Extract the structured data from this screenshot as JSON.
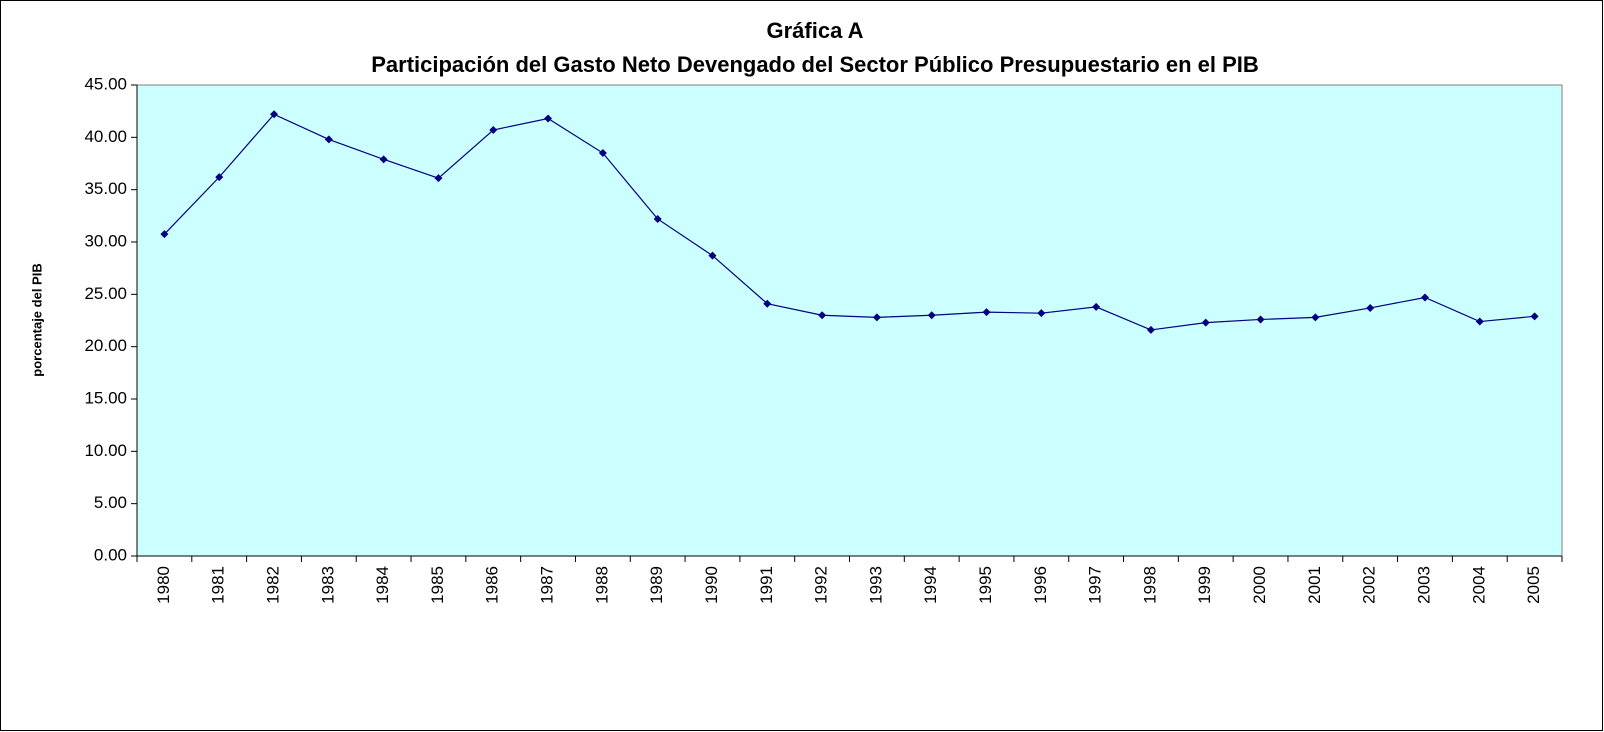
{
  "chart_data": {
    "type": "line",
    "title": "Gráfica A",
    "subtitle": "Participación del Gasto Neto Devengado del Sector Público Presupuestario en el PIB",
    "y_label": "porcentaje del PIB",
    "categories": [
      "1980",
      "1981",
      "1982",
      "1983",
      "1984",
      "1985",
      "1986",
      "1987",
      "1988",
      "1989",
      "1990",
      "1991",
      "1992",
      "1993",
      "1994",
      "1995",
      "1996",
      "1997",
      "1998",
      "1999",
      "2000",
      "2001",
      "2002",
      "2003",
      "2004",
      "2005"
    ],
    "series": [
      {
        "name": "Participación",
        "color": "#000080",
        "values": [
          30.75,
          36.2,
          42.2,
          39.8,
          37.9,
          36.1,
          40.7,
          41.8,
          38.5,
          32.2,
          28.7,
          24.1,
          23.0,
          22.8,
          23.0,
          23.3,
          23.2,
          23.8,
          21.6,
          22.3,
          22.6,
          22.8,
          23.7,
          24.7,
          22.4,
          22.9
        ]
      }
    ],
    "ylim": [
      0,
      45
    ],
    "yticks": [
      {
        "value": 0,
        "label": "0.00"
      },
      {
        "value": 5,
        "label": "5.00"
      },
      {
        "value": 10,
        "label": "10.00"
      },
      {
        "value": 15,
        "label": "15.00"
      },
      {
        "value": 20,
        "label": "20.00"
      },
      {
        "value": 25,
        "label": "25.00"
      },
      {
        "value": 30,
        "label": "30.00"
      },
      {
        "value": 35,
        "label": "35.00"
      },
      {
        "value": 40,
        "label": "40.00"
      },
      {
        "value": 45,
        "label": "45.00"
      }
    ],
    "plot_background": "#ccffff"
  }
}
